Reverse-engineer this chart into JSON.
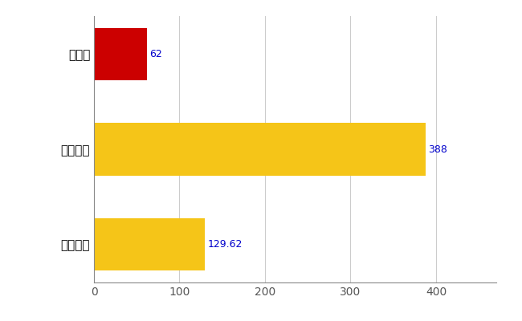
{
  "categories": [
    "全国平均",
    "全国最大",
    "滋賀県"
  ],
  "values": [
    129.62,
    388,
    62
  ],
  "bar_colors": [
    "#F5C518",
    "#F5C518",
    "#CC0000"
  ],
  "value_labels": [
    "129.62",
    "388",
    "62"
  ],
  "xlim": [
    0,
    470
  ],
  "xticks": [
    0,
    100,
    200,
    300,
    400
  ],
  "background_color": "#FFFFFF",
  "grid_color": "#CCCCCC",
  "label_color": "#0000CC",
  "bar_height": 0.55,
  "figsize": [
    6.5,
    4.0
  ],
  "dpi": 100
}
